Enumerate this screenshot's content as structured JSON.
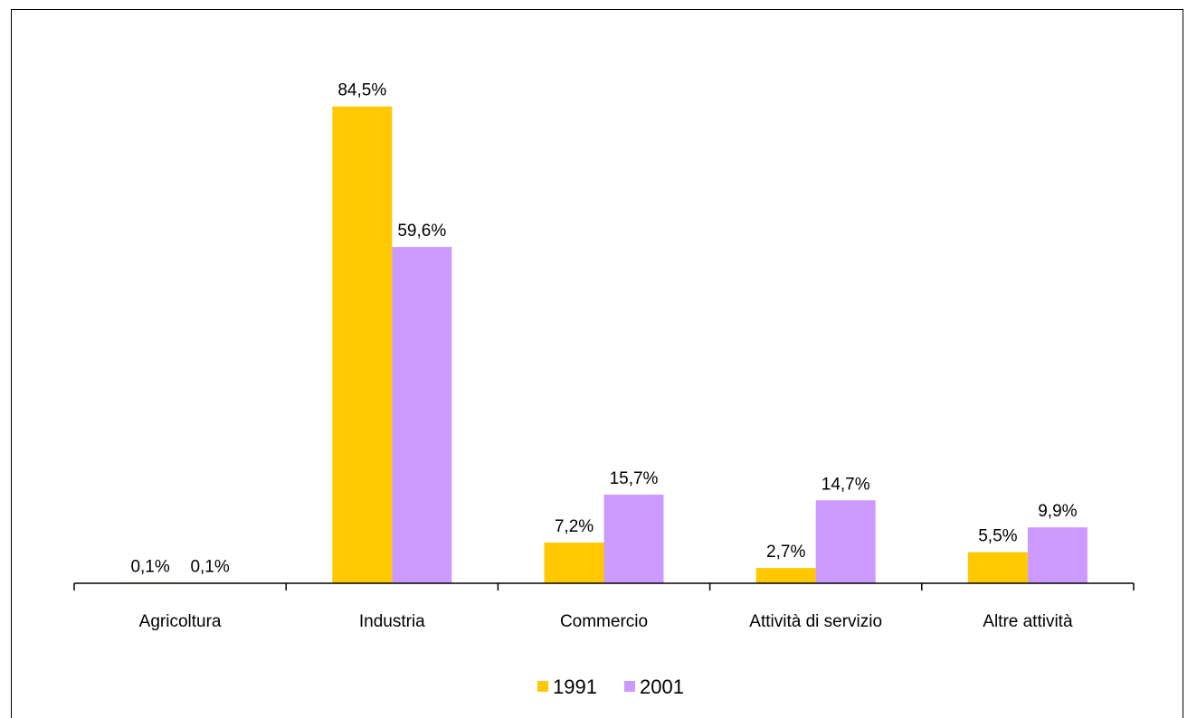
{
  "chart_data": {
    "type": "bar",
    "title": "",
    "xlabel": "",
    "ylabel": "",
    "categories": [
      "Agricoltura",
      "Industria",
      "Commercio",
      "Attività di servizio",
      "Altre attività"
    ],
    "series": [
      {
        "name": "1991",
        "color": "#FFC800",
        "values": [
          0.1,
          84.5,
          7.2,
          2.7,
          5.5
        ],
        "labels": [
          "0,1%",
          "84,5%",
          "7,2%",
          "2,7%",
          "5,5%"
        ]
      },
      {
        "name": "2001",
        "color": "#CC99FF",
        "values": [
          0.1,
          59.6,
          15.7,
          14.7,
          9.9
        ],
        "labels": [
          "0,1%",
          "59,6%",
          "15,7%",
          "14,7%",
          "9,9%"
        ]
      }
    ],
    "ylim": [
      0,
      100
    ],
    "grid": false,
    "legend_position": "bottom"
  }
}
